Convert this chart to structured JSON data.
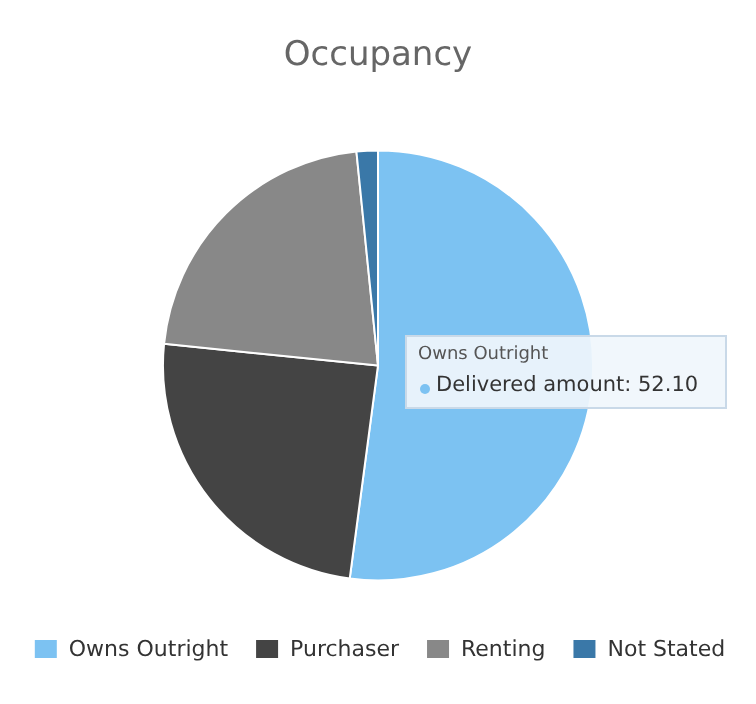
{
  "chart_data": {
    "type": "pie",
    "title": "Occupancy",
    "categories": [
      "Owns Outright",
      "Purchaser",
      "Renting",
      "Not Stated"
    ],
    "values": [
      52.1,
      24.5,
      21.8,
      1.6
    ],
    "colors": [
      "#7cc2f2",
      "#444444",
      "#888888",
      "#3a78a8"
    ],
    "legend": "bottom",
    "annotations": [
      "Owns Outright",
      "Delivered amount: 52.10"
    ]
  }
}
